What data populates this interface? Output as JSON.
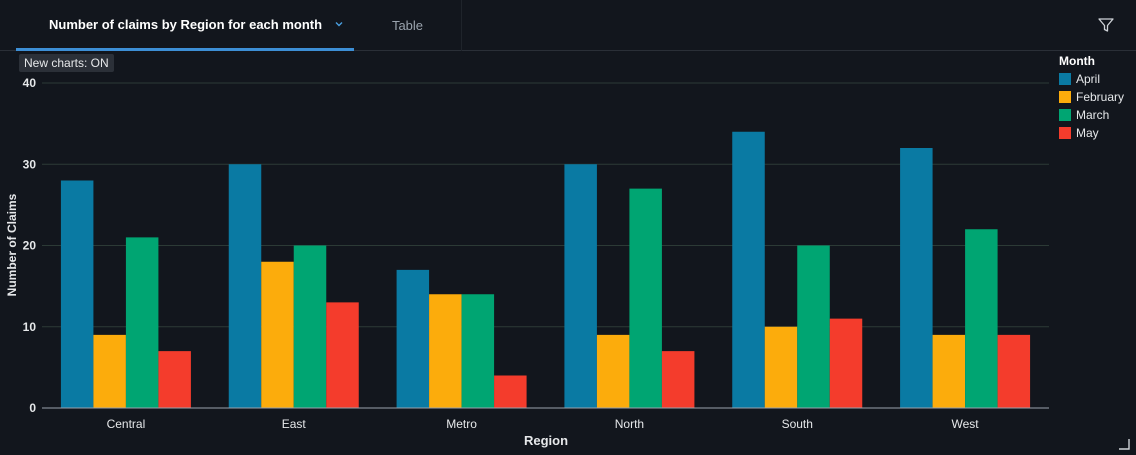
{
  "tabs": [
    {
      "label": "Number of claims by Region for each month",
      "active": true
    },
    {
      "label": "Table",
      "active": false
    }
  ],
  "badge": {
    "text": "New charts: ON"
  },
  "colors": {
    "April": "#0a7aa3",
    "February": "#fcac0c",
    "March": "#00a572",
    "May": "#f43c2c",
    "accent": "#3d8fd6"
  },
  "chart_data": {
    "type": "bar",
    "title": "",
    "xlabel": "Region",
    "ylabel": "Number of Claims",
    "ylim": [
      0,
      40
    ],
    "yticks": [
      0,
      10,
      20,
      30,
      40
    ],
    "grid": true,
    "legend_title": "Month",
    "legend_position": "top-right",
    "categories": [
      "Central",
      "East",
      "Metro",
      "North",
      "South",
      "West"
    ],
    "series": [
      {
        "name": "April",
        "values": [
          28,
          30,
          17,
          30,
          34,
          32
        ]
      },
      {
        "name": "February",
        "values": [
          9,
          18,
          14,
          9,
          10,
          9
        ]
      },
      {
        "name": "March",
        "values": [
          21,
          20,
          14,
          27,
          20,
          22
        ]
      },
      {
        "name": "May",
        "values": [
          7,
          13,
          4,
          7,
          11,
          9
        ]
      }
    ]
  }
}
